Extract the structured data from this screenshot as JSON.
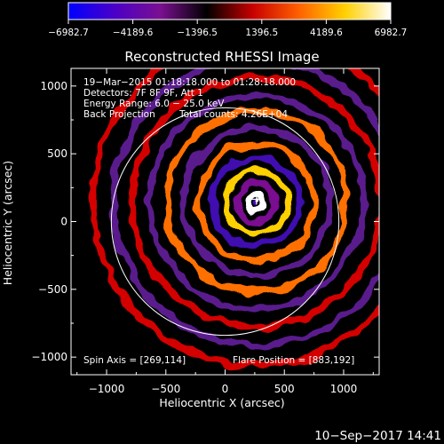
{
  "chart_data": {
    "type": "heatmap",
    "title": "Reconstructed RHESSI Image",
    "xlabel": "Heliocentric X (arcsec)",
    "ylabel": "Heliocentric Y (arcsec)",
    "xlim": [
      -1300,
      1300
    ],
    "ylim": [
      -1130,
      1130
    ],
    "x_ticks": [
      -1000,
      -500,
      0,
      500,
      1000
    ],
    "x_tick_labels": [
      "−1000",
      "−500",
      "0",
      "500",
      "1000"
    ],
    "y_ticks": [
      -1000,
      -500,
      0,
      500,
      1000
    ],
    "y_tick_labels": [
      "−1000",
      "−500",
      "0",
      "500",
      "1000"
    ],
    "colorbar": {
      "min": -6982.7,
      "max": 6982.7,
      "ticks": [
        -6982.7,
        -4189.6,
        -1396.5,
        1396.5,
        4189.6,
        6982.7
      ],
      "tick_labels": [
        "−6982.7",
        "−4189.6",
        "−1396.5",
        "1396.5",
        "4189.6",
        "6982.7"
      ],
      "colors": [
        "#0000ff",
        "#4b00c8",
        "#7a1090",
        "#000000",
        "#c80000",
        "#ff6000",
        "#ffd000",
        "#ffffff"
      ]
    },
    "annotations": {
      "time": "19−Mar−2015 01:18:18.000 to 01:28:18.000",
      "detectors": "Detectors: 7F 8F 9F, Att 1",
      "energy": "Energy Range: 6.0 − 25.0 keV",
      "method": "Back Projection",
      "counts": "Total counts: 4.26E+04",
      "spin_axis": "Spin Axis = [269,114]",
      "flare_position": "Flare Position = [883,192]"
    },
    "source_center": [
      265,
      145
    ],
    "limb_radius": 960,
    "rings": [
      {
        "r": 70,
        "value": 6982.7
      },
      {
        "r": 160,
        "value": -3500
      },
      {
        "r": 260,
        "value": 3600
      },
      {
        "r": 370,
        "value": -2500
      },
      {
        "r": 490,
        "value": 3000
      },
      {
        "r": 620,
        "value": -2000
      },
      {
        "r": 760,
        "value": 2700
      },
      {
        "r": 900,
        "value": -1800
      },
      {
        "r": 1050,
        "value": 2300
      },
      {
        "r": 1210,
        "value": -1500
      },
      {
        "r": 1380,
        "value": 1900
      }
    ]
  },
  "footer": {
    "date": "10−Sep−2017 14:41"
  }
}
